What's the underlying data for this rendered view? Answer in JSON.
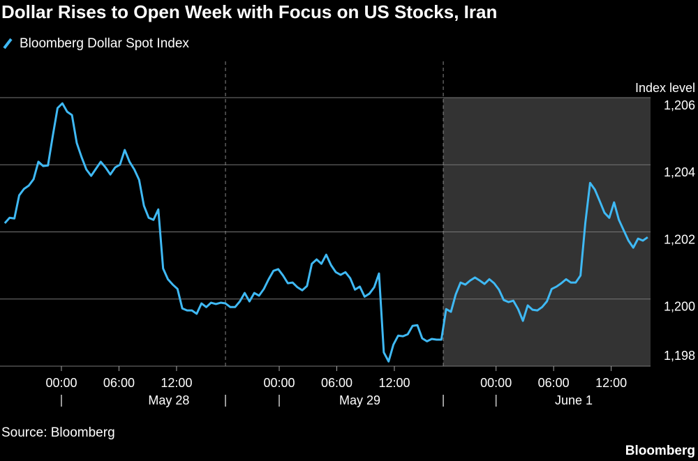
{
  "chart_data": {
    "type": "line",
    "title": "Dollar Rises to Open Week with Focus on US Stocks, Iran",
    "y_axis_label": "Index level",
    "source": "Source: Bloomberg",
    "brand": "Bloomberg",
    "series": [
      {
        "name": "Bloomberg Dollar Spot Index",
        "color": "#3fb9f4",
        "values": [
          1202.26,
          1202.42,
          1202.4,
          1203.09,
          1203.28,
          1203.38,
          1203.57,
          1204.09,
          1203.96,
          1203.98,
          1204.86,
          1205.69,
          1205.83,
          1205.58,
          1205.48,
          1204.65,
          1204.23,
          1203.86,
          1203.67,
          1203.88,
          1204.09,
          1203.92,
          1203.71,
          1203.92,
          1204.0,
          1204.44,
          1204.09,
          1203.86,
          1203.55,
          1202.78,
          1202.42,
          1202.36,
          1202.67,
          1200.91,
          1200.59,
          1200.43,
          1200.3,
          1199.72,
          1199.66,
          1199.66,
          1199.56,
          1199.87,
          1199.76,
          1199.89,
          1199.85,
          1199.89,
          1199.87,
          1199.76,
          1199.76,
          1199.93,
          1200.18,
          1199.93,
          1200.18,
          1200.1,
          1200.3,
          1200.59,
          1200.84,
          1200.89,
          1200.7,
          1200.47,
          1200.49,
          1200.35,
          1200.26,
          1200.39,
          1201.05,
          1201.18,
          1201.05,
          1201.32,
          1201.01,
          1200.8,
          1200.72,
          1200.8,
          1200.62,
          1200.28,
          1200.37,
          1200.07,
          1200.16,
          1200.35,
          1200.76,
          1198.41,
          1198.14,
          1198.64,
          1198.91,
          1198.89,
          1198.95,
          1199.2,
          1199.22,
          1198.83,
          1198.74,
          1198.81,
          1198.79,
          1198.79,
          1199.7,
          1199.62,
          1200.14,
          1200.49,
          1200.43,
          1200.55,
          1200.64,
          1200.55,
          1200.45,
          1200.59,
          1200.47,
          1200.28,
          1199.97,
          1199.91,
          1199.95,
          1199.7,
          1199.35,
          1199.81,
          1199.68,
          1199.66,
          1199.76,
          1199.93,
          1200.3,
          1200.37,
          1200.47,
          1200.59,
          1200.49,
          1200.49,
          1200.7,
          1202.26,
          1203.46,
          1203.26,
          1202.92,
          1202.57,
          1202.42,
          1202.88,
          1202.36,
          1202.05,
          1201.74,
          1201.53,
          1201.8,
          1201.74,
          1201.84
        ]
      }
    ],
    "x": [
      0.5,
      1,
      1.5,
      2,
      2.5,
      3,
      3.5,
      4,
      4.5,
      5,
      5.5,
      6,
      6.5,
      7,
      7.5,
      8,
      8.5,
      9,
      9.5,
      10,
      10.5,
      11,
      11.5,
      12,
      12.5,
      13,
      13.5,
      14,
      14.5,
      15,
      15.5,
      16,
      16.5,
      17,
      17.5,
      18,
      18.5,
      19,
      19.5,
      20,
      20.5,
      21,
      21.5,
      22,
      22.5,
      23,
      23.5,
      24,
      24.5,
      25,
      25.5,
      26,
      26.5,
      27,
      27.5,
      28,
      28.5,
      29,
      29.5,
      30,
      30.5,
      31,
      31.5,
      32,
      32.5,
      33,
      33.5,
      34,
      34.5,
      35,
      35.5,
      36,
      36.5,
      37,
      37.5,
      38,
      38.5,
      39,
      39.5,
      40,
      40.5,
      41,
      41.5,
      42,
      42.5,
      43,
      43.5,
      44,
      44.5,
      45,
      45.5,
      46,
      46.5,
      47,
      47.5,
      48,
      48.5,
      49,
      49.5,
      50,
      50.5,
      51,
      51.5,
      52,
      52.5,
      53,
      53.5,
      54,
      54.5,
      55,
      55.5,
      56,
      56.5,
      57,
      57.5,
      58,
      58.5,
      59,
      59.5,
      60,
      60.5,
      61,
      61.5,
      62,
      62.5,
      63,
      63.5,
      64,
      64.5,
      65,
      65.5,
      66,
      66.5,
      67,
      67.5
    ],
    "xlim": [
      0,
      67.8
    ],
    "xticks": [
      {
        "value": 6.4,
        "label": "00:00"
      },
      {
        "value": 12.4,
        "label": "06:00"
      },
      {
        "value": 18.4,
        "label": "12:00"
      },
      {
        "value": 29.1,
        "label": "00:00"
      },
      {
        "value": 35.1,
        "label": "06:00"
      },
      {
        "value": 41.1,
        "label": "12:00"
      },
      {
        "value": 51.7,
        "label": "00:00"
      },
      {
        "value": 57.7,
        "label": "06:00"
      },
      {
        "value": 63.7,
        "label": "12:00"
      }
    ],
    "x_groups": [
      {
        "value": 17.6,
        "label": "May 28"
      },
      {
        "value": 37.5,
        "label": "May 29"
      },
      {
        "value": 59.8,
        "label": "June 1"
      }
    ],
    "dividers": [
      23.5,
      46.2
    ],
    "shade": [
      46.2,
      67.8
    ],
    "ylim": [
      1198,
      1206
    ],
    "yticks": [
      {
        "value": 1198,
        "label": "1,198"
      },
      {
        "value": 1200,
        "label": "1,200"
      },
      {
        "value": 1202,
        "label": "1,202"
      },
      {
        "value": 1204,
        "label": "1,204"
      },
      {
        "value": 1206,
        "label": "1,206"
      }
    ],
    "grid": true
  }
}
